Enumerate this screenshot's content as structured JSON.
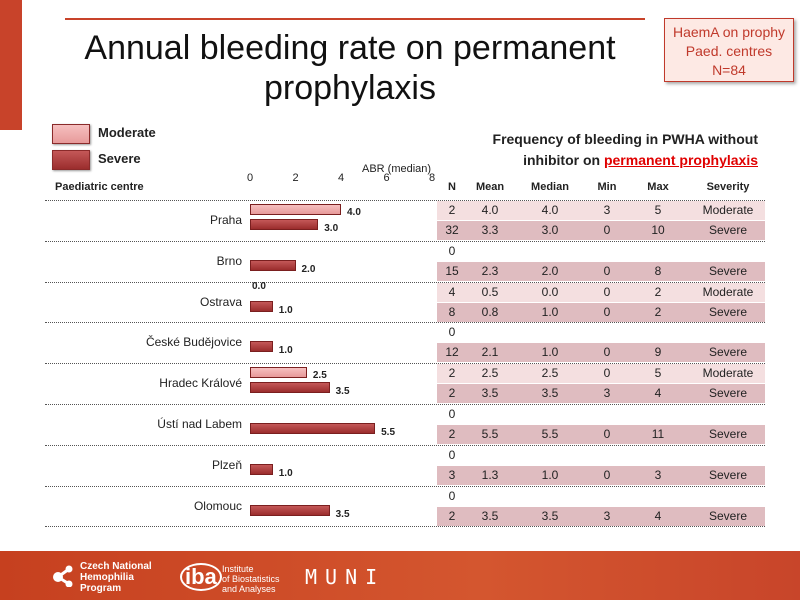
{
  "title": "Annual bleeding rate on permanent prophylaxis",
  "badge": [
    "HaemA on prophy",
    "Paed. centres",
    "N=84"
  ],
  "legend": [
    {
      "label": "Moderate",
      "color": "#eca7a7"
    },
    {
      "label": "Severe",
      "color": "#b03c3c"
    }
  ],
  "subtitle_prefix": "Frequency of bleeding in PWHA without inhibitor on ",
  "subtitle_highlight": "permanent prophylaxis",
  "chart_data": {
    "type": "bar",
    "orientation": "horizontal",
    "xlabel": "ABR (median)",
    "ylabel": "Paediatric centre",
    "xlim": [
      0,
      8
    ],
    "xticks": [
      "0",
      "2",
      "4",
      "6",
      "8"
    ],
    "categories": [
      "Praha",
      "Brno",
      "Ostrava",
      "České Budějovice",
      "Hradec Králové",
      "Ústí nad Labem",
      "Plzeň",
      "Olomouc"
    ],
    "series": [
      {
        "name": "Moderate",
        "values": [
          4.0,
          null,
          0.0,
          null,
          2.5,
          null,
          null,
          null
        ],
        "labels": [
          "4.0",
          "",
          "0.0",
          "",
          "2.5",
          "",
          "",
          ""
        ]
      },
      {
        "name": "Severe",
        "values": [
          3.0,
          2.0,
          1.0,
          1.0,
          3.5,
          5.5,
          1.0,
          3.5
        ],
        "labels": [
          "3.0",
          "2.0",
          "1.0",
          "1.0",
          "3.5",
          "5.5",
          "1.0",
          "3.5"
        ]
      }
    ]
  },
  "table": {
    "headers": [
      "N",
      "Mean",
      "Median",
      "Min",
      "Max",
      "Severity"
    ],
    "rows": [
      [
        [
          "2",
          "4.0",
          "4.0",
          "3",
          "5",
          "Moderate"
        ],
        [
          "32",
          "3.3",
          "3.0",
          "0",
          "10",
          "Severe"
        ]
      ],
      [
        [
          "0",
          "",
          "",
          "",
          "",
          ""
        ],
        [
          "15",
          "2.3",
          "2.0",
          "0",
          "8",
          "Severe"
        ]
      ],
      [
        [
          "4",
          "0.5",
          "0.0",
          "0",
          "2",
          "Moderate"
        ],
        [
          "8",
          "0.8",
          "1.0",
          "0",
          "2",
          "Severe"
        ]
      ],
      [
        [
          "0",
          "",
          "",
          "",
          "",
          ""
        ],
        [
          "12",
          "2.1",
          "1.0",
          "0",
          "9",
          "Severe"
        ]
      ],
      [
        [
          "2",
          "2.5",
          "2.5",
          "0",
          "5",
          "Moderate"
        ],
        [
          "2",
          "3.5",
          "3.5",
          "3",
          "4",
          "Severe"
        ]
      ],
      [
        [
          "0",
          "",
          "",
          "",
          "",
          ""
        ],
        [
          "2",
          "5.5",
          "5.5",
          "0",
          "11",
          "Severe"
        ]
      ],
      [
        [
          "0",
          "",
          "",
          "",
          "",
          ""
        ],
        [
          "3",
          "1.3",
          "1.0",
          "0",
          "3",
          "Severe"
        ]
      ],
      [
        [
          "0",
          "",
          "",
          "",
          "",
          ""
        ],
        [
          "2",
          "3.5",
          "3.5",
          "3",
          "4",
          "Severe"
        ]
      ]
    ]
  },
  "footer": {
    "logo1": [
      "Czech National",
      "Hemophilia",
      "Program"
    ],
    "logo2_mark": "iba",
    "logo2": [
      "Institute",
      "of Biostatistics",
      "and Analyses"
    ],
    "logo3": "MUNI"
  }
}
